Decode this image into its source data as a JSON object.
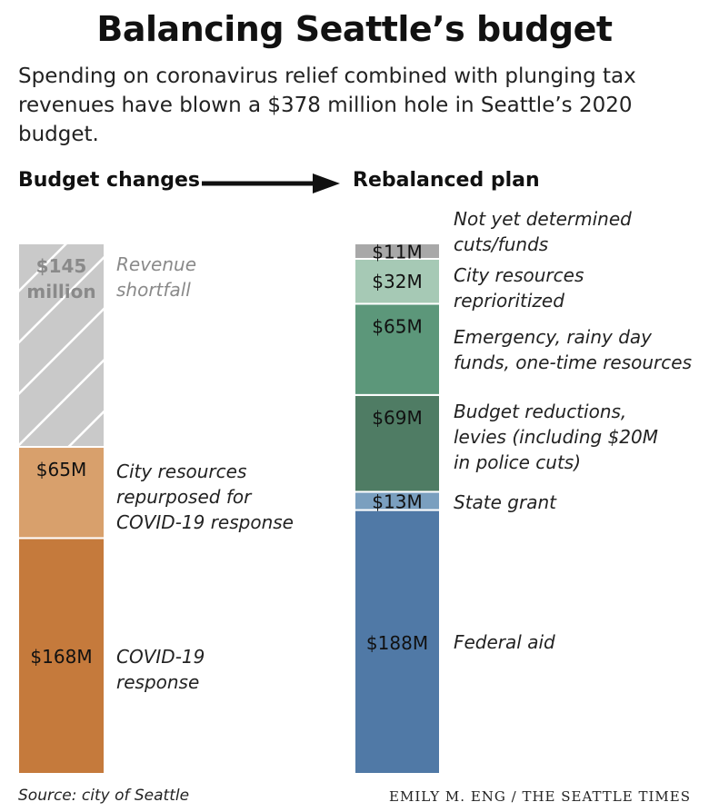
{
  "header": {
    "title": "Balancing Seattle’s budget",
    "subtitle": "Spending on coronavirus relief combined with plunging tax revenues have blown a $378 million hole in Seattle’s 2020 budget."
  },
  "columns": {
    "left_heading": "Budget changes",
    "right_heading": "Rebalanced plan"
  },
  "footer": {
    "source": "Source: city of Seattle",
    "credit": "EMILY M. ENG / THE SEATTLE TIMES"
  },
  "chart_data": [
    {
      "type": "bar",
      "stacked": true,
      "title": "Budget changes",
      "unit": "$ million",
      "total": 378,
      "series": [
        {
          "name": "COVID-19 response",
          "value": 168,
          "label": "$168M",
          "color": "#c57a3c"
        },
        {
          "name": "City resources repurposed for COVID-19 response",
          "value": 65,
          "label": "$65M",
          "color": "#d8a06c"
        },
        {
          "name": "Revenue shortfall",
          "value": 145,
          "label": "$145 million",
          "color": "#c9c9c9",
          "pattern": "diagonal-hatch"
        }
      ]
    },
    {
      "type": "bar",
      "stacked": true,
      "title": "Rebalanced plan",
      "unit": "$ million",
      "total": 378,
      "series": [
        {
          "name": "Federal aid",
          "value": 188,
          "label": "$188M",
          "color": "#5079a6"
        },
        {
          "name": "State grant",
          "value": 13,
          "label": "$13M",
          "color": "#7a9fbf"
        },
        {
          "name": "Budget reductions, levies (including $20M in police cuts)",
          "value": 69,
          "label": "$69M",
          "color": "#4f7c64"
        },
        {
          "name": "Emergency, rainy day funds, one-time resources",
          "value": 65,
          "label": "$65M",
          "color": "#5c977a"
        },
        {
          "name": "City resources reprioritized",
          "value": 32,
          "label": "$32M",
          "color": "#a6c9b5"
        },
        {
          "name": "Not yet determined cuts/funds",
          "value": 11,
          "label": "$11M",
          "color": "#a8a8a8"
        }
      ]
    }
  ]
}
